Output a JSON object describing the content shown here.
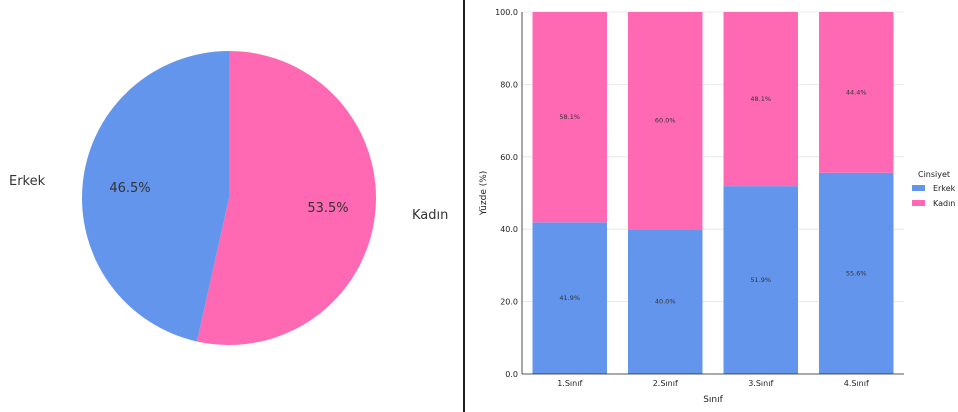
{
  "chart_data": [
    {
      "type": "pie",
      "labels": [
        "Erkek",
        "Kadın"
      ],
      "values": [
        46.5,
        53.5
      ],
      "value_labels": [
        "46.5%",
        "53.5%"
      ],
      "colors": [
        "#6495ED",
        "#FF69B4"
      ]
    },
    {
      "type": "bar",
      "stacked": true,
      "categories": [
        "1.Sınıf",
        "2.Sınıf",
        "3.Sınıf",
        "4.Sınıf"
      ],
      "series": [
        {
          "name": "Erkek",
          "color": "#6495ED",
          "values": [
            41.9,
            40.0,
            51.9,
            55.6
          ],
          "labels": [
            "41.9%",
            "40.0%",
            "51.9%",
            "55.6%"
          ]
        },
        {
          "name": "Kadın",
          "color": "#FF69B4",
          "values": [
            58.1,
            60.0,
            48.1,
            44.4
          ],
          "labels": [
            "58.1%",
            "60.0%",
            "48.1%",
            "44.4%"
          ]
        }
      ],
      "xlabel": "Sınıf",
      "ylabel": "Yüzde (%)",
      "ylim": [
        0,
        100
      ],
      "yticks": [
        "0.0",
        "20.0",
        "40.0",
        "60.0",
        "80.0",
        "100.0"
      ],
      "grid": true,
      "legend": {
        "title": "Cinsiyet",
        "placement": "right"
      }
    }
  ]
}
